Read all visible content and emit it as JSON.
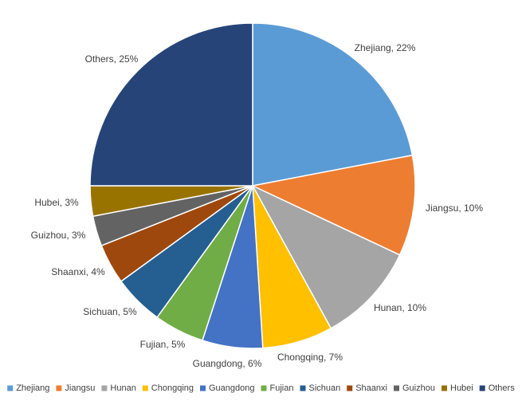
{
  "chart_data": {
    "type": "pie",
    "title": "",
    "categories": [
      "Zhejiang",
      "Jiangsu",
      "Hunan",
      "Chongqing",
      "Guangdong",
      "Fujian",
      "Sichuan",
      "Shaanxi",
      "Guizhou",
      "Hubei",
      "Others"
    ],
    "values": [
      22,
      10,
      10,
      7,
      6,
      5,
      5,
      4,
      3,
      3,
      25
    ],
    "value_unit": "%",
    "data_labels": [
      "Zhejiang, 22%",
      "Jiangsu, 10%",
      "Hunan, 10%",
      "Chongqing, 7%",
      "Guangdong, 6%",
      "Fujian, 5%",
      "Sichuan, 5%",
      "Shaanxi, 4%",
      "Guizhou, 3%",
      "Hubei, 3%",
      "Others, 25%"
    ],
    "colors": [
      "#5B9BD5",
      "#ED7D31",
      "#A5A5A5",
      "#FFC000",
      "#4472C4",
      "#70AD47",
      "#255E91",
      "#9E480E",
      "#636363",
      "#997300",
      "#264478"
    ],
    "start_angle": "12 o'clock",
    "direction": "clockwise",
    "legend": {
      "position": "bottom",
      "entries": [
        "Zhejiang",
        "Jiangsu",
        "Hunan",
        "Chongqing",
        "Guangdong",
        "Fujian",
        "Sichuan",
        "Shaanxi",
        "Guizhou",
        "Hubei",
        "Others"
      ]
    }
  }
}
